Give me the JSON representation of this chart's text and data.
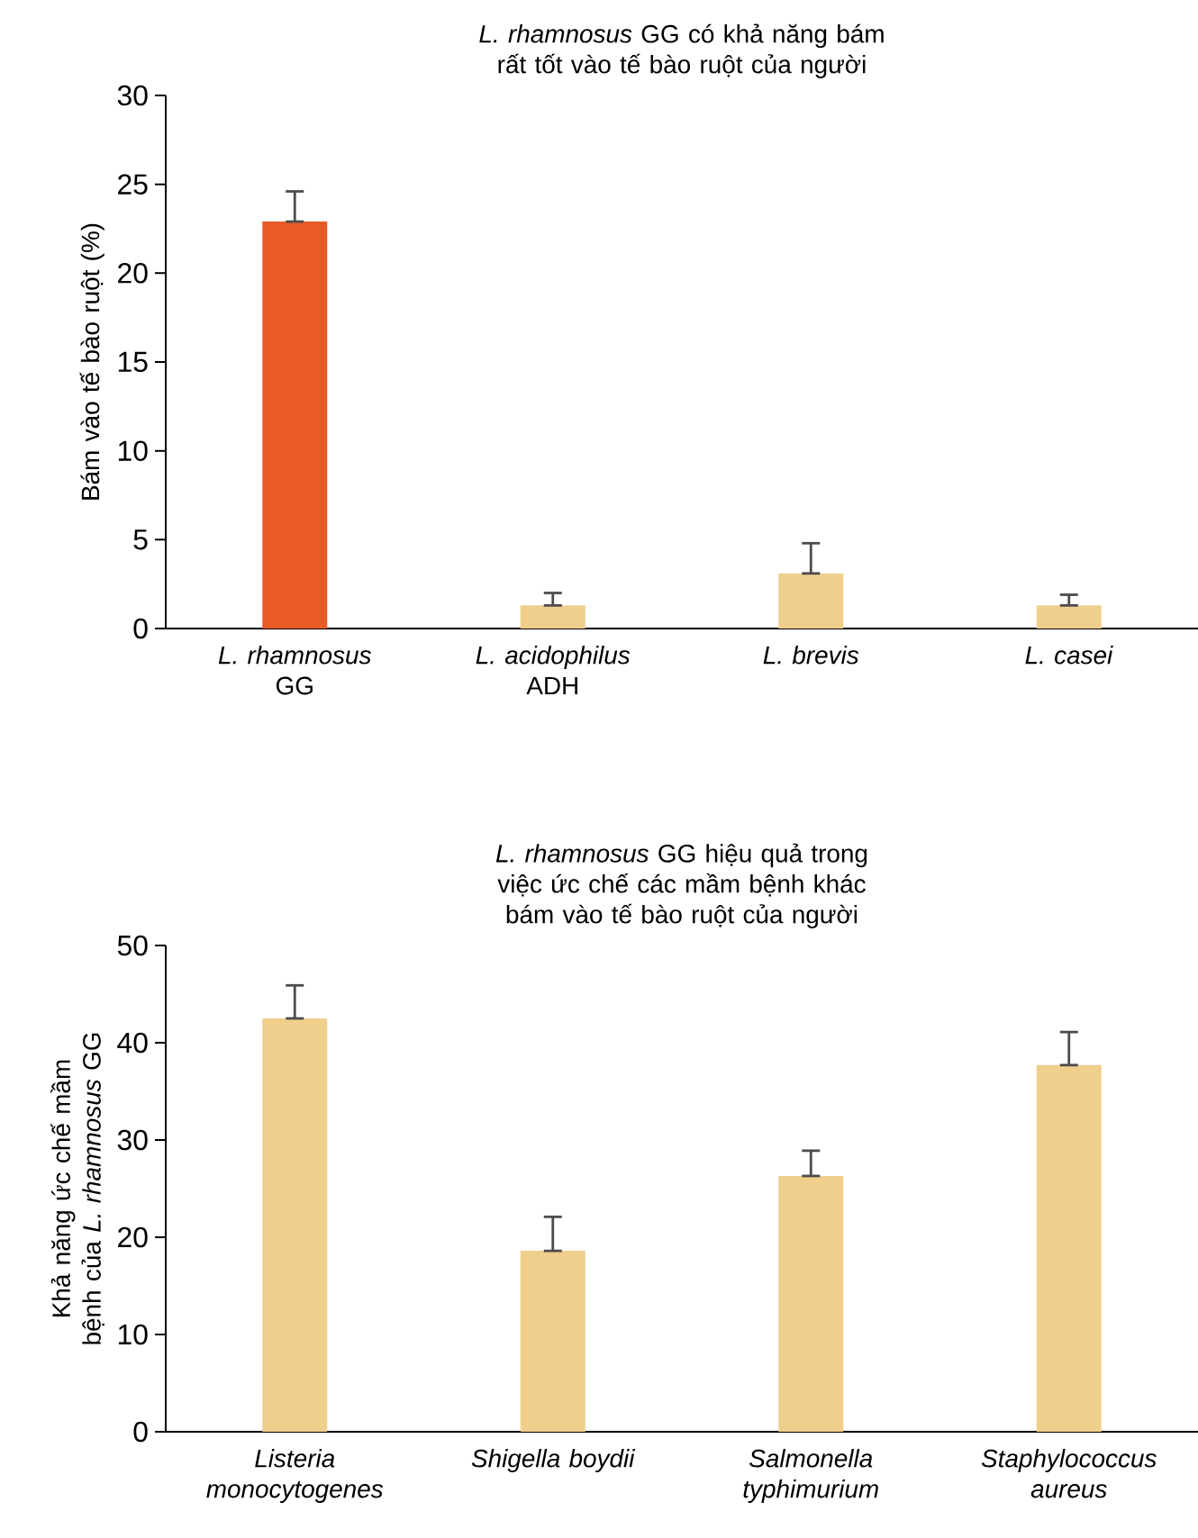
{
  "chart_data": [
    {
      "type": "bar",
      "title": "*L. rhamnosus* GG có khả năng bám rất tốt vào tế bào ruột của người",
      "ylabel": "Bám vào tế bào ruột (%)",
      "categories": [
        "*L. rhamnosus* GG",
        "*L. acidophilus* ADH",
        "*L. brevis*",
        "*L. casei*"
      ],
      "values": [
        22.9,
        1.3,
        3.1,
        1.3
      ],
      "errors": [
        [
          22.9,
          24.6
        ],
        [
          1.3,
          2.0
        ],
        [
          3.1,
          4.8
        ],
        [
          1.3,
          1.9
        ]
      ],
      "colors": [
        "#e85a28",
        "#f0cf8c",
        "#f0cf8c",
        "#f0cf8c"
      ],
      "ylim": [
        0,
        30
      ],
      "yticks": [
        0,
        5,
        10,
        15,
        20,
        25,
        30
      ]
    },
    {
      "type": "bar",
      "title": "*L. rhamnosus* GG hiệu quả trong việc ức chế các mầm bệnh khác bám vào tế bào ruột của người",
      "ylabel": "Khả năng ức chế mầm bệnh của *L. rhamnosus* GG",
      "categories": [
        "Listeria monocytogenes",
        "Shigella boydii",
        "Salmonella typhimurium",
        "Staphylococcus aureus"
      ],
      "values": [
        42.5,
        18.6,
        26.3,
        37.7
      ],
      "errors": [
        [
          42.5,
          45.9
        ],
        [
          18.6,
          22.1
        ],
        [
          26.3,
          28.9
        ],
        [
          37.7,
          41.1
        ]
      ],
      "colors": [
        "#f0cf8c",
        "#f0cf8c",
        "#f0cf8c",
        "#f0cf8c"
      ],
      "ylim": [
        0,
        50
      ],
      "yticks": [
        0,
        10,
        20,
        30,
        40,
        50
      ]
    }
  ]
}
